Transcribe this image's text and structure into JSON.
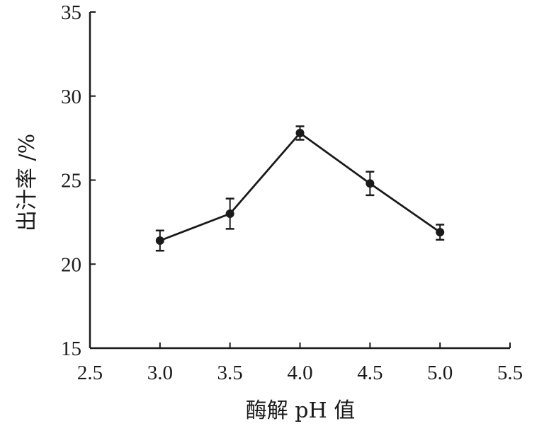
{
  "chart_data": {
    "type": "line",
    "xlabel": "酶解 pH 值",
    "ylabel": "出汁率 /%",
    "xlim": [
      2.5,
      5.5
    ],
    "ylim": [
      15,
      35
    ],
    "x_ticks": [
      "2.5",
      "3.0",
      "3.5",
      "4.0",
      "4.5",
      "5.0",
      "5.5"
    ],
    "y_ticks": [
      "15",
      "20",
      "25",
      "30",
      "35"
    ],
    "grid": false,
    "series": [
      {
        "x": [
          3.0,
          3.5,
          4.0,
          4.5,
          5.0
        ],
        "y": [
          21.4,
          23.0,
          27.8,
          24.8,
          21.9
        ],
        "error": [
          0.6,
          0.9,
          0.4,
          0.7,
          0.45
        ]
      }
    ],
    "colors": {
      "line": "#1a1a1a",
      "marker": "#1a1a1a"
    }
  }
}
